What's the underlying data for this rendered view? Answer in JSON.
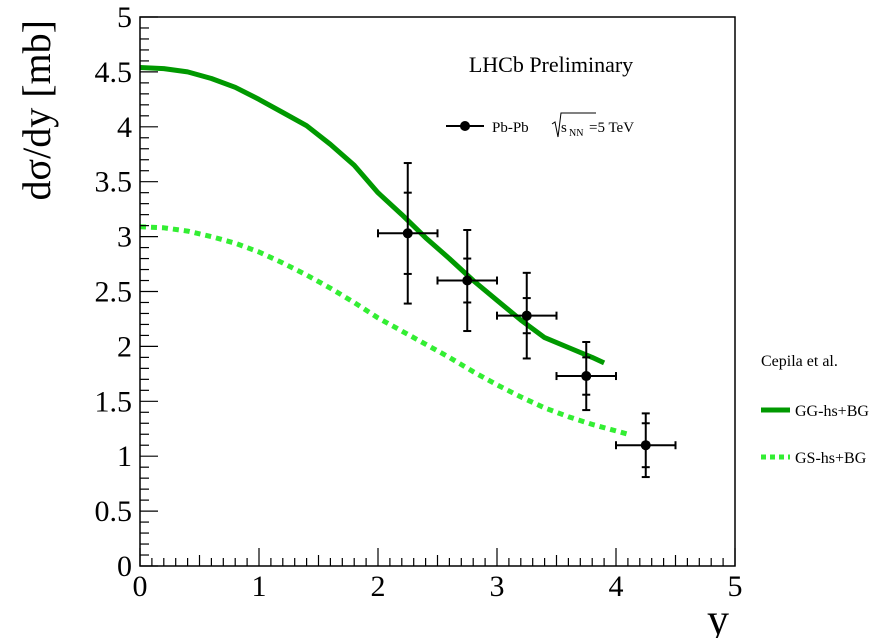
{
  "chart_data": {
    "type": "line",
    "xlabel": "y",
    "ylabel": "dσ/dy [mb]",
    "xlim": [
      0,
      5
    ],
    "ylim": [
      0,
      5
    ],
    "x_ticks": [
      "0",
      "1",
      "2",
      "3",
      "4",
      "5"
    ],
    "y_ticks": [
      "0",
      "0.5",
      "1",
      "1.5",
      "2",
      "2.5",
      "3",
      "3.5",
      "4",
      "4.5",
      "5"
    ],
    "annotation": "LHCb Preliminary",
    "data_series": {
      "legend_label": {
        "prefix": "Pb-Pb ",
        "sqrt_s": "s",
        "sub": "NN",
        "suffix": "=5 TeV"
      },
      "color": "#000000",
      "points": [
        {
          "x": 2.25,
          "y": 3.03,
          "xerr": 0.25,
          "stat": 0.37,
          "tot": 0.64
        },
        {
          "x": 2.75,
          "y": 2.6,
          "xerr": 0.25,
          "stat": 0.2,
          "tot": 0.46
        },
        {
          "x": 3.25,
          "y": 2.28,
          "xerr": 0.25,
          "stat": 0.16,
          "tot": 0.39
        },
        {
          "x": 3.75,
          "y": 1.73,
          "xerr": 0.25,
          "stat": 0.17,
          "tot": 0.31
        },
        {
          "x": 4.25,
          "y": 1.1,
          "xerr": 0.25,
          "stat": 0.2,
          "tot": 0.29
        }
      ]
    },
    "model_title": "Cepila et al.",
    "series": [
      {
        "name": "GG-hs+BG",
        "style": "solid",
        "color": "#009900",
        "x": [
          0,
          0.2,
          0.4,
          0.6,
          0.8,
          1.0,
          1.2,
          1.4,
          1.6,
          1.8,
          2.0,
          2.2,
          2.4,
          2.6,
          2.8,
          3.0,
          3.2,
          3.4,
          3.6,
          3.8,
          3.9
        ],
        "y": [
          4.54,
          4.53,
          4.5,
          4.44,
          4.36,
          4.25,
          4.13,
          4.01,
          3.84,
          3.65,
          3.4,
          3.2,
          2.99,
          2.8,
          2.6,
          2.42,
          2.24,
          2.08,
          1.99,
          1.9,
          1.85
        ]
      },
      {
        "name": "GS-hs+BG",
        "style": "dashed",
        "color": "#33ee33",
        "x": [
          0,
          0.2,
          0.4,
          0.6,
          0.8,
          1.0,
          1.2,
          1.4,
          1.6,
          1.8,
          2.0,
          2.2,
          2.4,
          2.6,
          2.8,
          3.0,
          3.2,
          3.4,
          3.6,
          3.8,
          4.0,
          4.1
        ],
        "y": [
          3.09,
          3.08,
          3.05,
          3.0,
          2.94,
          2.86,
          2.76,
          2.65,
          2.53,
          2.4,
          2.26,
          2.14,
          2.02,
          1.9,
          1.77,
          1.65,
          1.54,
          1.44,
          1.36,
          1.29,
          1.23,
          1.2
        ]
      }
    ]
  }
}
